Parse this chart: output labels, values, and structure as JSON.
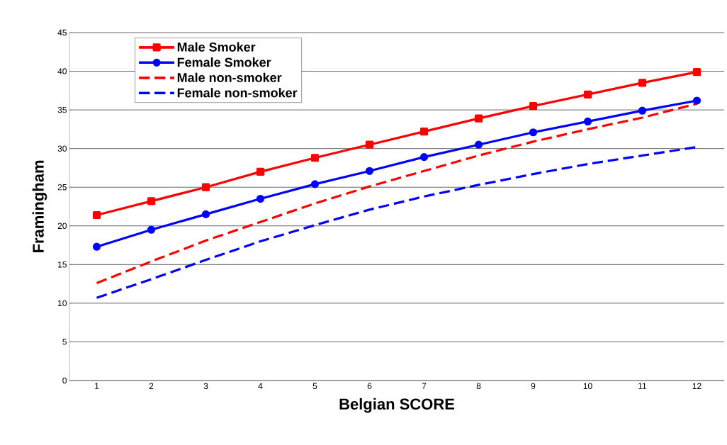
{
  "chart_data": {
    "type": "line",
    "xlabel": "Belgian SCORE",
    "ylabel": "Framingham",
    "categories": [
      "1",
      "2",
      "3",
      "4",
      "5",
      "6",
      "7",
      "8",
      "9",
      "10",
      "11",
      "12"
    ],
    "series": [
      {
        "name": "Male Smoker",
        "color": "#ff0000",
        "marker": "square",
        "line_style": "solid",
        "values": [
          21.4,
          23.2,
          25.0,
          27.0,
          28.8,
          30.5,
          32.2,
          33.9,
          35.5,
          37.0,
          38.5,
          39.9
        ]
      },
      {
        "name": "Female Smoker",
        "color": "#0000ff",
        "marker": "circle",
        "line_style": "solid",
        "values": [
          17.3,
          19.5,
          21.5,
          23.5,
          25.4,
          27.1,
          28.9,
          30.5,
          32.1,
          33.5,
          34.9,
          36.2
        ]
      },
      {
        "name": "Male non-smoker",
        "color": "#ff0000",
        "marker": "none",
        "line_style": "dashed",
        "values": [
          12.6,
          15.4,
          18.1,
          20.5,
          22.9,
          25.1,
          27.1,
          29.1,
          30.9,
          32.5,
          34.0,
          35.8
        ]
      },
      {
        "name": "Female non-smoker",
        "color": "#0000ff",
        "marker": "none",
        "line_style": "dashed",
        "values": [
          10.7,
          13.1,
          15.6,
          18.0,
          20.1,
          22.1,
          23.8,
          25.3,
          26.7,
          28.0,
          29.1,
          30.2
        ]
      }
    ],
    "ylim": [
      0,
      45
    ],
    "yticks": [
      0,
      5,
      10,
      15,
      20,
      25,
      30,
      35,
      40,
      45
    ],
    "grid": "y",
    "legend": "top left"
  }
}
